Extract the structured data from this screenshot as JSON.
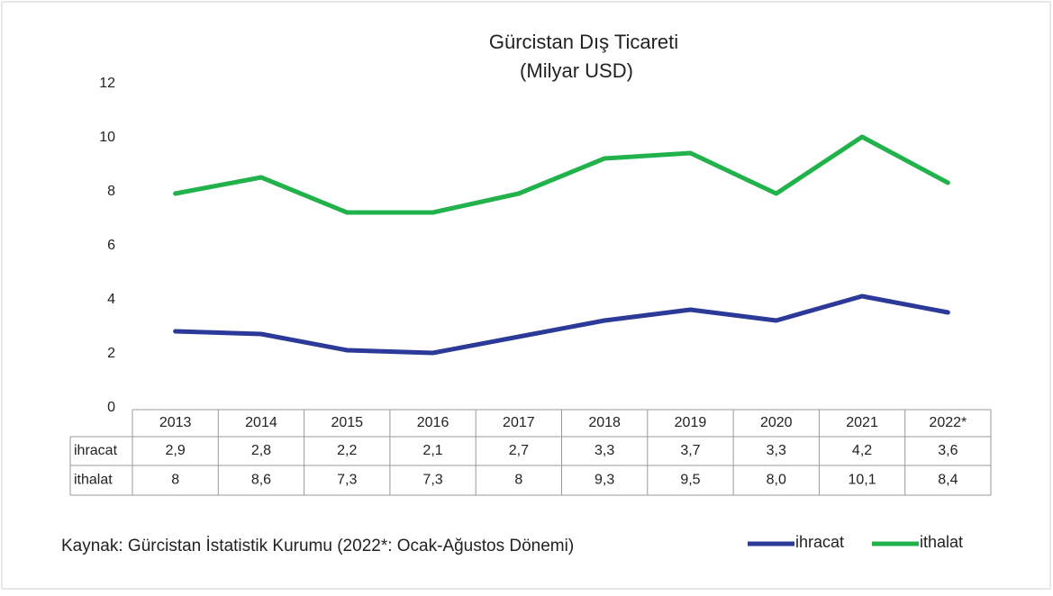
{
  "chart_data": {
    "type": "line",
    "title": "Gürcistan Dış Ticareti",
    "subtitle": "(Milyar USD)",
    "categories": [
      "2013",
      "2014",
      "2015",
      "2016",
      "2017",
      "2018",
      "2019",
      "2020",
      "2021",
      "2022*"
    ],
    "series": [
      {
        "name": "ihracat",
        "color": "#2b3a98",
        "values": [
          2.9,
          2.8,
          2.2,
          2.1,
          2.7,
          3.3,
          3.7,
          3.3,
          4.2,
          3.6
        ],
        "value_labels": [
          "2,9",
          "2,8",
          "2,2",
          "2,1",
          "2,7",
          "3,3",
          "3,7",
          "3,3",
          "4,2",
          "3,6"
        ]
      },
      {
        "name": "ithalat",
        "color": "#21b24b",
        "values": [
          8,
          8.6,
          7.3,
          7.3,
          8,
          9.3,
          9.5,
          8.0,
          10.1,
          8.4
        ],
        "value_labels": [
          "8",
          "8,6",
          "7,3",
          "7,3",
          "8",
          "9,3",
          "9,5",
          "8,0",
          "10,1",
          "8,4"
        ]
      }
    ],
    "ylim": [
      0,
      12
    ],
    "yticks": [
      0,
      2,
      4,
      6,
      8,
      10,
      12
    ],
    "grid": false,
    "legend": "bottom-right",
    "source": "Kaynak: Gürcistan İstatistik Kurumu (2022*: Ocak-Ağustos Dönemi)"
  }
}
